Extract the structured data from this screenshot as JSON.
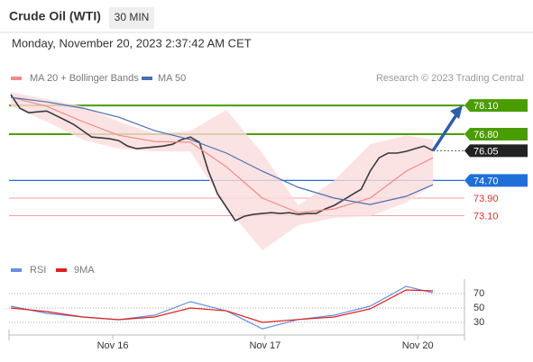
{
  "chart_data": [
    {
      "type": "line",
      "title": "Crude Oil (WTI)",
      "subtitle": "30 MIN",
      "date": "Monday, November 20, 2023 2:37:42 AM CET",
      "credit": "Research © 2023 Trading Central",
      "xlim": [
        -0.2,
        50.5
      ],
      "ylim": [
        71.45,
        78.8
      ],
      "xticks": [
        {
          "value": 11.35,
          "label": "Nov 16"
        },
        {
          "value": 28.3,
          "label": "Nov 17"
        },
        {
          "value": 45.3,
          "label": "Nov 20"
        }
      ],
      "levels": [
        {
          "value": 78.1,
          "label": "78.10",
          "color": "#4a9d00",
          "style": "box"
        },
        {
          "value": 76.8,
          "label": "76.80",
          "color": "#4a9d00",
          "style": "box"
        },
        {
          "value": 74.7,
          "label": "74.70",
          "color": "#1f6fd8",
          "style": "box"
        },
        {
          "value": 73.9,
          "label": "73.90",
          "color": "#e03030",
          "style": "text"
        },
        {
          "value": 73.1,
          "label": "73.10",
          "color": "#e03030",
          "style": "text"
        }
      ],
      "current": {
        "value": 76.05,
        "label": "76.05",
        "color": "#222"
      },
      "target_color": "#2d5fa8",
      "series": [
        {
          "color": "#3a3a3a",
          "x": [
            0,
            1,
            2,
            3,
            4,
            5,
            6,
            7,
            8,
            9,
            10,
            11,
            12,
            13,
            14,
            15,
            16,
            17,
            18,
            19,
            20,
            21,
            22,
            23,
            24,
            25,
            26,
            27,
            28,
            29,
            30,
            31,
            32,
            33,
            34,
            35,
            36,
            37,
            38,
            39,
            40,
            41,
            42,
            43,
            44,
            45,
            46,
            47
          ],
          "values": [
            78.59,
            77.98,
            77.77,
            77.81,
            77.85,
            77.65,
            77.45,
            77.24,
            76.96,
            76.67,
            76.63,
            76.59,
            76.51,
            76.26,
            76.14,
            76.18,
            76.22,
            76.26,
            76.34,
            76.55,
            76.67,
            76.43,
            75.12,
            74.1,
            73.49,
            72.88,
            73.08,
            73.16,
            73.2,
            73.24,
            73.2,
            73.24,
            73.16,
            73.2,
            73.2,
            73.41,
            73.57,
            73.81,
            74.06,
            74.3,
            75.12,
            75.73,
            75.94,
            75.94,
            76.02,
            76.14,
            76.26,
            76.05
          ]
        },
        {
          "name": "MA 20 + Bollinger Bands",
          "color": "#f08a8a",
          "band_color": "#fbdcdc",
          "x": [
            0,
            4,
            8,
            12,
            16,
            20,
            24,
            28,
            32,
            36,
            40,
            44,
            47
          ],
          "values": [
            78.47,
            78.06,
            77.37,
            76.75,
            76.47,
            76.43,
            75.32,
            73.9,
            73.24,
            73.41,
            73.9,
            75.12,
            75.73
          ],
          "upper": [
            78.7,
            78.39,
            78.06,
            77.37,
            76.83,
            76.96,
            77.9,
            75.94,
            73.57,
            74.71,
            76.34,
            76.75,
            76.55
          ],
          "lower": [
            78.06,
            77.37,
            76.55,
            76.14,
            76.02,
            76.02,
            73.49,
            71.53,
            72.67,
            73.0,
            73.08,
            73.69,
            74.51
          ]
        },
        {
          "name": "MA 50",
          "color": "#4a6fb0",
          "x": [
            0,
            4,
            8,
            12,
            16,
            20,
            24,
            28,
            32,
            36,
            40,
            44,
            47
          ],
          "values": [
            78.47,
            78.26,
            77.98,
            77.57,
            76.96,
            76.55,
            75.94,
            75.12,
            74.39,
            73.9,
            73.61,
            73.98,
            74.51
          ]
        }
      ]
    },
    {
      "type": "line",
      "xlim": [
        -0.2,
        50.5
      ],
      "ylim": [
        15,
        90
      ],
      "yticks": [
        30,
        50,
        70
      ],
      "grid": true,
      "series": [
        {
          "name": "RSI",
          "color": "#6a8fe0",
          "x": [
            0,
            4,
            8,
            12,
            16,
            20,
            24,
            28,
            32,
            36,
            40,
            44,
            47
          ],
          "values": [
            52.5,
            42.5,
            37.5,
            33.75,
            40,
            58.75,
            46,
            21,
            34,
            40,
            52.5,
            80,
            71
          ]
        },
        {
          "name": "9MA",
          "color": "#e02020",
          "x": [
            0,
            4,
            8,
            12,
            16,
            20,
            24,
            28,
            32,
            36,
            40,
            44,
            47
          ],
          "values": [
            50,
            45,
            37.5,
            33.75,
            37.5,
            50,
            46,
            30,
            34,
            37.5,
            48.75,
            75,
            73.75
          ]
        }
      ]
    }
  ]
}
